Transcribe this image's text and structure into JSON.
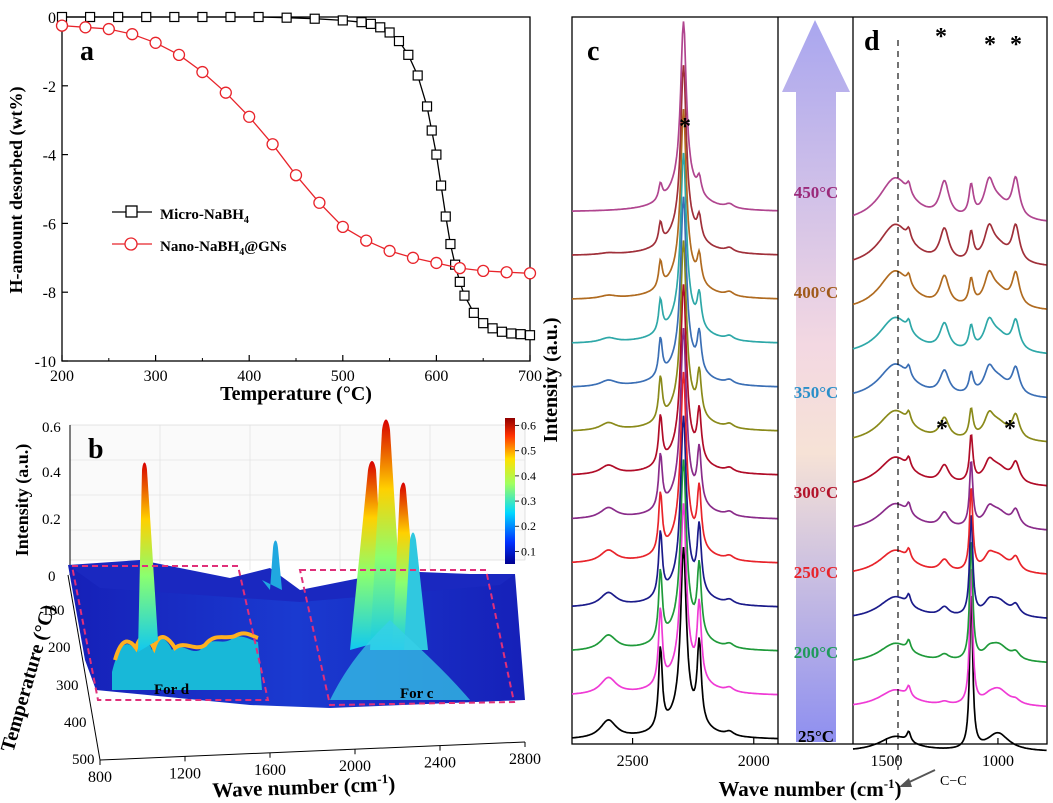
{
  "chart_data": [
    {
      "panel": "a",
      "type": "line",
      "xlabel": "Temperature (°C)",
      "ylabel": "H-amount desorbed (wt%)",
      "xlim": [
        200,
        700
      ],
      "ylim": [
        -10,
        0
      ],
      "xticks": [
        "200",
        "300",
        "400",
        "500",
        "600",
        "700"
      ],
      "yticks": [
        "0",
        "-2",
        "-4",
        "-6",
        "-8",
        "-10"
      ],
      "legend_position": "middle-left",
      "series": [
        {
          "name": "Micro-NaBH4",
          "marker": "square",
          "color": "#000000",
          "x": [
            200,
            230,
            260,
            290,
            320,
            350,
            380,
            410,
            440,
            470,
            500,
            520,
            530,
            540,
            550,
            560,
            570,
            580,
            590,
            595,
            600,
            605,
            610,
            615,
            620,
            625,
            630,
            640,
            650,
            660,
            670,
            680,
            690,
            700
          ],
          "y": [
            0,
            0,
            0,
            0,
            0,
            0,
            0,
            0,
            -0.02,
            -0.05,
            -0.1,
            -0.15,
            -0.2,
            -0.3,
            -0.45,
            -0.7,
            -1.1,
            -1.7,
            -2.6,
            -3.3,
            -4.0,
            -4.9,
            -5.8,
            -6.6,
            -7.2,
            -7.7,
            -8.1,
            -8.6,
            -8.9,
            -9.05,
            -9.15,
            -9.2,
            -9.22,
            -9.25
          ]
        },
        {
          "name": "Nano-NaBH4@GNs",
          "marker": "circle",
          "color": "#e8242b",
          "x": [
            200,
            225,
            250,
            275,
            300,
            325,
            350,
            375,
            400,
            425,
            450,
            475,
            500,
            525,
            550,
            575,
            600,
            625,
            650,
            675,
            700
          ],
          "y": [
            -0.25,
            -0.3,
            -0.35,
            -0.5,
            -0.75,
            -1.1,
            -1.6,
            -2.2,
            -2.9,
            -3.7,
            -4.6,
            -5.4,
            -6.1,
            -6.5,
            -6.8,
            -7.0,
            -7.15,
            -7.3,
            -7.38,
            -7.42,
            -7.45
          ]
        }
      ]
    },
    {
      "panel": "b",
      "type": "heatmap",
      "xlabel": "Wave number (cm-1)",
      "ylabel": "Temperature (°C)",
      "zlabel": "Intensity (a.u.)",
      "xticks": [
        "800",
        "1200",
        "1600",
        "2000",
        "2400",
        "2800"
      ],
      "yticks": [
        "0",
        "100",
        "200",
        "300",
        "400",
        "500"
      ],
      "zticks": [
        "0.6",
        "0.4",
        "0.2",
        "0"
      ],
      "colorbar_ticks": [
        "0.6",
        "0.5",
        "0.4",
        "0.3",
        "0.2",
        "0.1"
      ],
      "colorbar_range": [
        0.05,
        0.63
      ],
      "annotations": [
        "For d",
        "For c"
      ]
    },
    {
      "panel": "c",
      "type": "line",
      "xlabel": "Wave number (cm-1)",
      "ylabel": "Intensity (a.u.)",
      "xticks": [
        "2500",
        "2000"
      ],
      "xlim": [
        2750,
        1900
      ],
      "temperatures": [
        "25°C",
        "200°C",
        "250°C",
        "300°C",
        "350°C",
        "400°C",
        "450°C"
      ],
      "peak_markers": [
        "*"
      ],
      "series_colors": [
        "#000000",
        "#ef3bd5",
        "#1f9a3a",
        "#1b1b8a",
        "#e8242b",
        "#8a2c8a",
        "#b00c28",
        "#8a8a1a",
        "#3b6fb5",
        "#2ea8a8",
        "#b06b20",
        "#a0303a",
        "#b0458f"
      ]
    },
    {
      "panel": "d",
      "type": "line",
      "xticks": [
        "1500",
        "1000"
      ],
      "xlim": [
        1650,
        780
      ],
      "peak_markers": [
        "*",
        "*",
        "*",
        "*",
        "*"
      ],
      "annotations": [
        "C−C"
      ],
      "series_colors": [
        "#000000",
        "#ef3bd5",
        "#1f9a3a",
        "#1b1b8a",
        "#e8242b",
        "#8a2c8a",
        "#b00c28",
        "#8a8a1a",
        "#3b6fb5",
        "#2ea8a8",
        "#b06b20",
        "#a0303a",
        "#b0458f"
      ]
    }
  ],
  "labels": {
    "a": "a",
    "b": "b",
    "c": "c",
    "d": "d",
    "legend_micro": "Micro-NaBH",
    "legend_micro_sub": "4",
    "legend_nano_a": "Nano-NaBH",
    "legend_nano_sub": "4",
    "legend_nano_b": "@GNs",
    "a_xlabel": "Temperature (°C)",
    "a_ylabel": "H-amount desorbed (wt%)",
    "b_zlabel": "Intensity (a.u.)",
    "b_ylabel": "Temperature (°C)",
    "b_xlabel": "Wave number (cm",
    "b_xlabel_sup": "-1",
    "b_xlabel_end": ")",
    "b_for_d": "For d",
    "b_for_c": "For c",
    "cd_ylabel": "Intensity (a.u.)",
    "cd_xlabel": "Wave number (cm",
    "cd_xlabel_sup": "-1",
    "cd_xlabel_end": ")",
    "cc_label": "C−C",
    "star": "*",
    "arrow_temps": [
      {
        "t": "450°C",
        "color": "#9b2a7a"
      },
      {
        "t": "400°C",
        "color": "#a05a1a"
      },
      {
        "t": "350°C",
        "color": "#2a8fc9"
      },
      {
        "t": "300°C",
        "color": "#b3132b"
      },
      {
        "t": "250°C",
        "color": "#e8242b"
      },
      {
        "t": "200°C",
        "color": "#1f9a5a"
      },
      {
        "t": "25°C",
        "color": "#000000"
      }
    ]
  }
}
